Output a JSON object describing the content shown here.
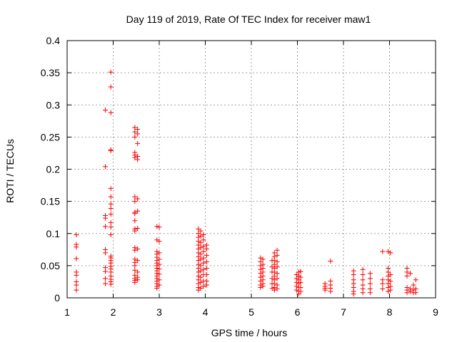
{
  "chart_data": {
    "type": "scatter",
    "title": "Day 119 of 2019, Rate Of TEC Index for receiver maw1",
    "xlabel": "GPS time / hours",
    "ylabel": "ROTI / TECUs",
    "xlim": [
      1,
      9
    ],
    "ylim": [
      0,
      0.4
    ],
    "xticks": [
      "1",
      "2",
      "3",
      "4",
      "5",
      "6",
      "7",
      "8",
      "9"
    ],
    "yticks": [
      "0",
      "0.05",
      "0.1",
      "0.15",
      "0.2",
      "0.25",
      "0.3",
      "0.35",
      "0.4"
    ],
    "grid": true,
    "marker": "+",
    "colors": {
      "points": "#ff0000",
      "grid": "#a0a0a0",
      "axes": "#000000"
    },
    "series": [
      {
        "name": "ROTI",
        "points": [
          [
            1.2,
            0.098
          ],
          [
            1.2,
            0.083
          ],
          [
            1.2,
            0.079
          ],
          [
            1.2,
            0.061
          ],
          [
            1.2,
            0.04
          ],
          [
            1.2,
            0.035
          ],
          [
            1.2,
            0.025
          ],
          [
            1.2,
            0.02
          ],
          [
            1.2,
            0.012
          ],
          [
            1.83,
            0.292
          ],
          [
            1.83,
            0.204
          ],
          [
            1.83,
            0.128
          ],
          [
            1.83,
            0.124
          ],
          [
            1.83,
            0.111
          ],
          [
            1.83,
            0.075
          ],
          [
            1.83,
            0.07
          ],
          [
            1.83,
            0.047
          ],
          [
            1.83,
            0.041
          ],
          [
            1.83,
            0.03
          ],
          [
            1.83,
            0.022
          ],
          [
            1.95,
            0.351
          ],
          [
            1.95,
            0.328
          ],
          [
            1.95,
            0.288
          ],
          [
            1.95,
            0.23
          ],
          [
            1.95,
            0.229
          ],
          [
            1.95,
            0.17
          ],
          [
            1.95,
            0.157
          ],
          [
            1.95,
            0.146
          ],
          [
            1.95,
            0.139
          ],
          [
            1.95,
            0.13
          ],
          [
            1.95,
            0.117
          ],
          [
            1.95,
            0.11
          ],
          [
            1.95,
            0.098
          ],
          [
            1.95,
            0.065
          ],
          [
            1.95,
            0.062
          ],
          [
            1.95,
            0.058
          ],
          [
            1.95,
            0.054
          ],
          [
            1.95,
            0.049
          ],
          [
            1.95,
            0.045
          ],
          [
            1.95,
            0.04
          ],
          [
            1.95,
            0.034
          ],
          [
            1.95,
            0.029
          ],
          [
            1.95,
            0.025
          ],
          [
            1.95,
            0.021
          ],
          [
            2.47,
            0.265
          ],
          [
            2.47,
            0.258
          ],
          [
            2.47,
            0.25
          ],
          [
            2.47,
            0.226
          ],
          [
            2.47,
            0.222
          ],
          [
            2.47,
            0.218
          ],
          [
            2.47,
            0.157
          ],
          [
            2.47,
            0.15
          ],
          [
            2.47,
            0.133
          ],
          [
            2.47,
            0.131
          ],
          [
            2.47,
            0.12
          ],
          [
            2.47,
            0.107
          ],
          [
            2.47,
            0.104
          ],
          [
            2.47,
            0.078
          ],
          [
            2.47,
            0.074
          ],
          [
            2.47,
            0.06
          ],
          [
            2.47,
            0.055
          ],
          [
            2.47,
            0.05
          ],
          [
            2.47,
            0.043
          ],
          [
            2.47,
            0.035
          ],
          [
            2.47,
            0.03
          ],
          [
            2.47,
            0.027
          ],
          [
            2.47,
            0.024
          ],
          [
            2.53,
            0.262
          ],
          [
            2.53,
            0.255
          ],
          [
            2.53,
            0.24
          ],
          [
            2.53,
            0.22
          ],
          [
            2.53,
            0.215
          ],
          [
            2.53,
            0.154
          ],
          [
            2.53,
            0.135
          ],
          [
            2.53,
            0.108
          ],
          [
            2.53,
            0.076
          ],
          [
            2.53,
            0.058
          ],
          [
            2.53,
            0.04
          ],
          [
            2.53,
            0.032
          ],
          [
            2.53,
            0.028
          ],
          [
            2.95,
            0.111
          ],
          [
            2.95,
            0.09
          ],
          [
            2.95,
            0.072
          ],
          [
            2.95,
            0.068
          ],
          [
            2.95,
            0.063
          ],
          [
            2.95,
            0.058
          ],
          [
            2.95,
            0.054
          ],
          [
            2.95,
            0.05
          ],
          [
            2.95,
            0.046
          ],
          [
            2.95,
            0.042
          ],
          [
            2.95,
            0.038
          ],
          [
            2.95,
            0.034
          ],
          [
            2.95,
            0.03
          ],
          [
            2.95,
            0.026
          ],
          [
            2.95,
            0.022
          ],
          [
            2.95,
            0.018
          ],
          [
            2.95,
            0.015
          ],
          [
            3.0,
            0.11
          ],
          [
            3.0,
            0.088
          ],
          [
            3.0,
            0.07
          ],
          [
            3.0,
            0.06
          ],
          [
            3.0,
            0.052
          ],
          [
            3.0,
            0.045
          ],
          [
            3.0,
            0.037
          ],
          [
            3.0,
            0.028
          ],
          [
            3.0,
            0.02
          ],
          [
            3.85,
            0.107
          ],
          [
            3.85,
            0.1
          ],
          [
            3.85,
            0.094
          ],
          [
            3.85,
            0.088
          ],
          [
            3.85,
            0.082
          ],
          [
            3.85,
            0.076
          ],
          [
            3.85,
            0.07
          ],
          [
            3.85,
            0.064
          ],
          [
            3.85,
            0.058
          ],
          [
            3.85,
            0.052
          ],
          [
            3.85,
            0.046
          ],
          [
            3.85,
            0.04
          ],
          [
            3.85,
            0.034
          ],
          [
            3.85,
            0.028
          ],
          [
            3.85,
            0.022
          ],
          [
            3.85,
            0.016
          ],
          [
            3.85,
            0.012
          ],
          [
            3.9,
            0.104
          ],
          [
            3.9,
            0.096
          ],
          [
            3.9,
            0.086
          ],
          [
            3.9,
            0.078
          ],
          [
            3.9,
            0.068
          ],
          [
            3.9,
            0.06
          ],
          [
            3.9,
            0.05
          ],
          [
            3.9,
            0.042
          ],
          [
            3.9,
            0.032
          ],
          [
            3.9,
            0.024
          ],
          [
            3.9,
            0.015
          ],
          [
            3.96,
            0.098
          ],
          [
            3.96,
            0.09
          ],
          [
            3.96,
            0.08
          ],
          [
            3.96,
            0.072
          ],
          [
            3.96,
            0.062
          ],
          [
            3.96,
            0.054
          ],
          [
            3.96,
            0.044
          ],
          [
            3.96,
            0.036
          ],
          [
            3.96,
            0.026
          ],
          [
            3.96,
            0.018
          ],
          [
            4.03,
            0.082
          ],
          [
            4.03,
            0.076
          ],
          [
            4.03,
            0.066
          ],
          [
            4.03,
            0.056
          ],
          [
            4.03,
            0.046
          ],
          [
            4.03,
            0.036
          ],
          [
            4.03,
            0.026
          ],
          [
            4.03,
            0.02
          ],
          [
            5.2,
            0.062
          ],
          [
            5.2,
            0.056
          ],
          [
            5.2,
            0.05
          ],
          [
            5.2,
            0.044
          ],
          [
            5.2,
            0.038
          ],
          [
            5.2,
            0.032
          ],
          [
            5.2,
            0.026
          ],
          [
            5.2,
            0.02
          ],
          [
            5.2,
            0.016
          ],
          [
            5.25,
            0.06
          ],
          [
            5.25,
            0.052
          ],
          [
            5.25,
            0.046
          ],
          [
            5.25,
            0.04
          ],
          [
            5.25,
            0.034
          ],
          [
            5.25,
            0.028
          ],
          [
            5.25,
            0.022
          ],
          [
            5.25,
            0.018
          ],
          [
            5.45,
            0.058
          ],
          [
            5.45,
            0.048
          ],
          [
            5.45,
            0.04
          ],
          [
            5.45,
            0.03
          ],
          [
            5.45,
            0.022
          ],
          [
            5.45,
            0.015
          ],
          [
            5.5,
            0.07
          ],
          [
            5.5,
            0.064
          ],
          [
            5.5,
            0.058
          ],
          [
            5.5,
            0.052
          ],
          [
            5.5,
            0.046
          ],
          [
            5.5,
            0.04
          ],
          [
            5.5,
            0.034
          ],
          [
            5.5,
            0.028
          ],
          [
            5.5,
            0.022
          ],
          [
            5.5,
            0.016
          ],
          [
            5.5,
            0.012
          ],
          [
            5.56,
            0.074
          ],
          [
            5.56,
            0.066
          ],
          [
            5.56,
            0.056
          ],
          [
            5.56,
            0.048
          ],
          [
            5.56,
            0.038
          ],
          [
            5.56,
            0.03
          ],
          [
            5.56,
            0.02
          ],
          [
            5.56,
            0.014
          ],
          [
            5.98,
            0.036
          ],
          [
            5.98,
            0.03
          ],
          [
            5.98,
            0.024
          ],
          [
            5.98,
            0.018
          ],
          [
            5.98,
            0.012
          ],
          [
            6.03,
            0.04
          ],
          [
            6.03,
            0.034
          ],
          [
            6.03,
            0.028
          ],
          [
            6.03,
            0.022
          ],
          [
            6.03,
            0.016
          ],
          [
            6.03,
            0.01
          ],
          [
            6.03,
            0.006
          ],
          [
            6.07,
            0.041
          ],
          [
            6.07,
            0.032
          ],
          [
            6.07,
            0.024
          ],
          [
            6.07,
            0.016
          ],
          [
            6.07,
            0.01
          ],
          [
            6.6,
            0.022
          ],
          [
            6.6,
            0.018
          ],
          [
            6.6,
            0.015
          ],
          [
            6.6,
            0.012
          ],
          [
            6.72,
            0.057
          ],
          [
            6.72,
            0.026
          ],
          [
            6.72,
            0.02
          ],
          [
            6.72,
            0.015
          ],
          [
            6.72,
            0.01
          ],
          [
            7.22,
            0.042
          ],
          [
            7.22,
            0.036
          ],
          [
            7.22,
            0.028
          ],
          [
            7.22,
            0.022
          ],
          [
            7.22,
            0.016
          ],
          [
            7.22,
            0.01
          ],
          [
            7.22,
            0.006
          ],
          [
            7.42,
            0.044
          ],
          [
            7.42,
            0.036
          ],
          [
            7.42,
            0.028
          ],
          [
            7.42,
            0.02
          ],
          [
            7.42,
            0.014
          ],
          [
            7.42,
            0.008
          ],
          [
            7.58,
            0.038
          ],
          [
            7.58,
            0.03
          ],
          [
            7.58,
            0.022
          ],
          [
            7.58,
            0.014
          ],
          [
            7.58,
            0.008
          ],
          [
            7.85,
            0.072
          ],
          [
            7.85,
            0.028
          ],
          [
            7.85,
            0.022
          ],
          [
            7.85,
            0.014
          ],
          [
            7.97,
            0.072
          ],
          [
            7.97,
            0.046
          ],
          [
            7.97,
            0.04
          ],
          [
            7.97,
            0.034
          ],
          [
            7.97,
            0.028
          ],
          [
            7.97,
            0.022
          ],
          [
            7.97,
            0.016
          ],
          [
            7.97,
            0.01
          ],
          [
            8.02,
            0.07
          ],
          [
            8.02,
            0.036
          ],
          [
            8.02,
            0.026
          ],
          [
            8.02,
            0.018
          ],
          [
            8.02,
            0.012
          ],
          [
            8.38,
            0.046
          ],
          [
            8.38,
            0.04
          ],
          [
            8.38,
            0.034
          ],
          [
            8.38,
            0.016
          ],
          [
            8.38,
            0.012
          ],
          [
            8.38,
            0.008
          ],
          [
            8.45,
            0.038
          ],
          [
            8.45,
            0.014
          ],
          [
            8.45,
            0.01
          ],
          [
            8.52,
            0.02
          ],
          [
            8.52,
            0.012
          ],
          [
            8.52,
            0.008
          ],
          [
            8.57,
            0.028
          ],
          [
            8.57,
            0.014
          ],
          [
            8.57,
            0.008
          ]
        ]
      }
    ]
  }
}
